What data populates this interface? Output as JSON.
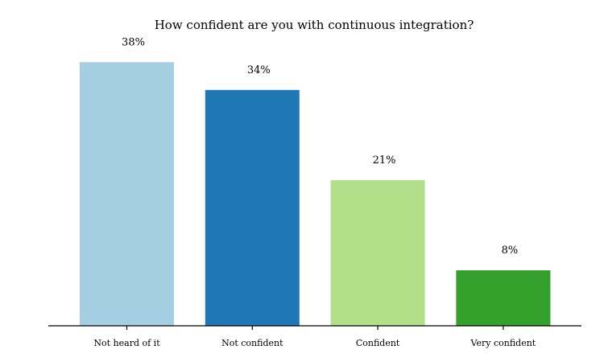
{
  "chart_data": {
    "type": "bar",
    "title": "How confident are you with continuous integration?",
    "xlabel": "",
    "ylabel": "",
    "categories": [
      "Not heard of it",
      "Not confident",
      "Confident",
      "Very confident"
    ],
    "values": [
      38,
      34,
      21,
      8
    ],
    "data_labels": [
      "38%",
      "34%",
      "21%",
      "8%"
    ],
    "colors": [
      "#a6cee3",
      "#1f78b4",
      "#b2df8a",
      "#33a02c"
    ],
    "ylim": [
      0,
      41.4
    ],
    "grid": false,
    "legend": "none"
  }
}
